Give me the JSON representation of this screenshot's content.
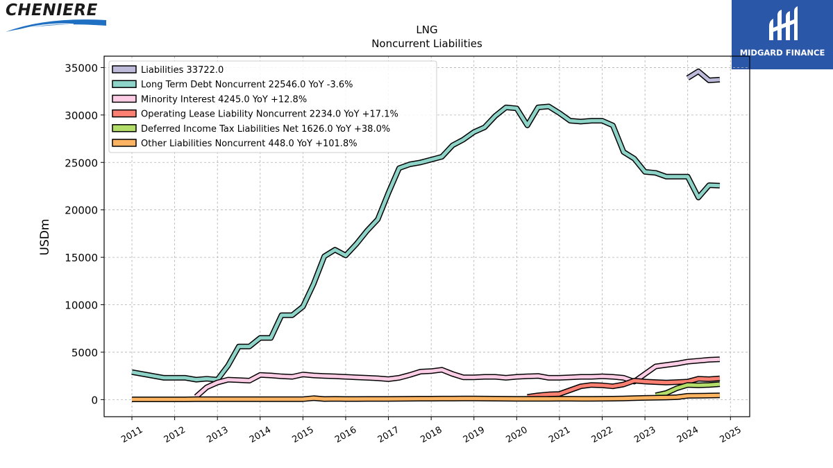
{
  "brand": {
    "company": "CHENIERE",
    "provider": "MIDGARD FINANCE"
  },
  "chart_data": {
    "type": "line",
    "title": "LNG",
    "subtitle": "Noncurrent  Liabilities",
    "xlabel": "",
    "ylabel": "USDm",
    "xlim": [
      2010.35,
      2025.45
    ],
    "ylim": [
      -1800,
      36200
    ],
    "x_ticks": [
      "2011",
      "2012",
      "2013",
      "2014",
      "2015",
      "2016",
      "2017",
      "2018",
      "2019",
      "2020",
      "2021",
      "2022",
      "2023",
      "2024",
      "2025"
    ],
    "y_ticks": [
      0,
      5000,
      10000,
      15000,
      20000,
      25000,
      30000,
      35000
    ],
    "grid": true,
    "legend_position": "top-left",
    "series": [
      {
        "name": "Liabilities  33722.0",
        "color": "#bebada",
        "x": [
          2024.0,
          2024.25,
          2024.5,
          2024.75
        ],
        "y": [
          33900,
          34600,
          33650,
          33722
        ]
      },
      {
        "name": "Long Term Debt Noncurrent  22546.0 YoY -3.6%",
        "color": "#8dd3c7",
        "x": [
          2011.0,
          2011.25,
          2011.5,
          2011.75,
          2012.0,
          2012.25,
          2012.5,
          2012.75,
          2013.0,
          2013.25,
          2013.5,
          2013.75,
          2014.0,
          2014.25,
          2014.5,
          2014.75,
          2015.0,
          2015.25,
          2015.5,
          2015.75,
          2016.0,
          2016.25,
          2016.5,
          2016.75,
          2017.0,
          2017.25,
          2017.5,
          2017.75,
          2018.0,
          2018.25,
          2018.5,
          2018.75,
          2019.0,
          2019.25,
          2019.5,
          2019.75,
          2020.0,
          2020.25,
          2020.5,
          2020.75,
          2021.0,
          2021.25,
          2021.5,
          2021.75,
          2022.0,
          2022.25,
          2022.5,
          2022.75,
          2023.0,
          2023.25,
          2023.5,
          2023.75,
          2024.0,
          2024.25,
          2024.5,
          2024.75
        ],
        "y": [
          2900,
          2700,
          2500,
          2300,
          2300,
          2300,
          2100,
          2200,
          2100,
          3600,
          5600,
          5600,
          6500,
          6500,
          8900,
          8900,
          9800,
          12200,
          15100,
          15800,
          15200,
          16400,
          17800,
          19000,
          21800,
          24400,
          24800,
          25000,
          25300,
          25600,
          26800,
          27400,
          28200,
          28700,
          29900,
          30800,
          30700,
          28900,
          30800,
          30900,
          30200,
          29400,
          29300,
          29400,
          29400,
          28900,
          26100,
          25400,
          24000,
          23900,
          23500,
          23500,
          23500,
          21300,
          22600,
          22546
        ]
      },
      {
        "name": "Minority Interest  4245.0 YoY +12.8%",
        "color": "#fccde5",
        "x": [
          2012.5,
          2012.75,
          2013.0,
          2013.25,
          2013.5,
          2013.75,
          2014.0,
          2014.25,
          2014.5,
          2014.75,
          2015.0,
          2015.25,
          2015.5,
          2015.75,
          2016.0,
          2016.25,
          2016.5,
          2016.75,
          2017.0,
          2017.25,
          2017.5,
          2017.75,
          2018.0,
          2018.25,
          2018.5,
          2018.75,
          2019.0,
          2019.25,
          2019.5,
          2019.75,
          2020.0,
          2020.25,
          2020.5,
          2020.75,
          2021.0,
          2021.25,
          2021.5,
          2021.75,
          2022.0,
          2022.25,
          2022.5,
          2022.75,
          2023.0,
          2023.25,
          2023.5,
          2023.75,
          2024.0,
          2024.25,
          2024.5,
          2024.75
        ],
        "y": [
          300,
          1300,
          1800,
          2100,
          2050,
          2000,
          2600,
          2550,
          2450,
          2400,
          2650,
          2550,
          2500,
          2450,
          2400,
          2350,
          2300,
          2250,
          2150,
          2300,
          2600,
          2950,
          3000,
          3150,
          2700,
          2350,
          2350,
          2400,
          2400,
          2300,
          2400,
          2450,
          2500,
          2300,
          2300,
          2350,
          2400,
          2400,
          2450,
          2400,
          2300,
          1900,
          2700,
          3500,
          3650,
          3800,
          4000,
          4100,
          4200,
          4245
        ]
      },
      {
        "name": "Operating Lease Liability Noncurrent  2234.0 YoY +17.1%",
        "color": "#fb8072",
        "x": [
          2020.25,
          2020.5,
          2020.75,
          2021.0,
          2021.25,
          2021.5,
          2021.75,
          2022.0,
          2022.25,
          2022.5,
          2022.75,
          2023.0,
          2023.25,
          2023.5,
          2023.75,
          2024.0,
          2024.25,
          2024.5,
          2024.75
        ],
        "y": [
          300,
          450,
          550,
          600,
          1000,
          1400,
          1550,
          1500,
          1400,
          1600,
          2000,
          1900,
          1850,
          1800,
          1850,
          1900,
          2200,
          2150,
          2234
        ]
      },
      {
        "name": "Deferred Income Tax Liabilities Net  1626.0 YoY +38.0%",
        "color": "#b3de69",
        "x": [
          2023.25,
          2023.5,
          2023.75,
          2024.0,
          2024.25,
          2024.5,
          2024.75
        ],
        "y": [
          450,
          700,
          1200,
          1550,
          1500,
          1550,
          1626
        ]
      },
      {
        "name": "Other Liabilities Noncurrent  448.0 YoY +101.8%",
        "color": "#fdb462",
        "x": [
          2011.0,
          2011.25,
          2011.5,
          2011.75,
          2012.0,
          2012.25,
          2012.5,
          2012.75,
          2013.0,
          2013.25,
          2013.5,
          2013.75,
          2014.0,
          2014.25,
          2014.5,
          2014.75,
          2015.0,
          2015.25,
          2015.5,
          2015.75,
          2016.0,
          2016.25,
          2016.5,
          2016.75,
          2017.0,
          2017.25,
          2017.5,
          2017.75,
          2018.0,
          2018.25,
          2018.5,
          2018.75,
          2019.0,
          2019.25,
          2019.5,
          2019.75,
          2020.0,
          2020.25,
          2020.5,
          2020.75,
          2021.0,
          2021.25,
          2021.5,
          2021.75,
          2022.0,
          2022.25,
          2022.5,
          2022.75,
          2023.0,
          2023.25,
          2023.5,
          2023.75,
          2024.0,
          2024.25,
          2024.5,
          2024.75
        ],
        "y": [
          30,
          30,
          30,
          30,
          30,
          30,
          40,
          40,
          40,
          40,
          40,
          40,
          40,
          40,
          40,
          40,
          50,
          150,
          60,
          80,
          60,
          60,
          70,
          70,
          70,
          80,
          90,
          100,
          100,
          110,
          110,
          120,
          120,
          110,
          100,
          90,
          80,
          80,
          80,
          80,
          90,
          90,
          80,
          80,
          90,
          100,
          120,
          150,
          180,
          200,
          220,
          250,
          400,
          410,
          430,
          448
        ]
      }
    ]
  }
}
